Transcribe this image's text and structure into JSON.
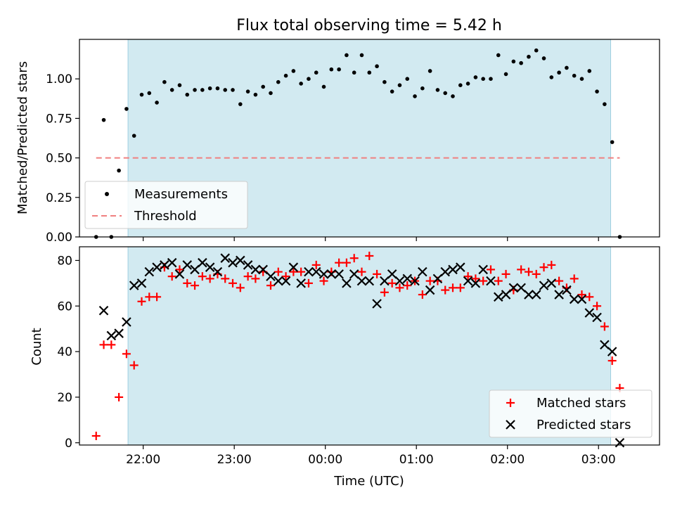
{
  "chart_data": [
    {
      "type": "scatter",
      "title": "Flux total observing time = 5.42 h",
      "xlabel": "",
      "ylabel": "Matched/Predicted stars",
      "ylim": [
        0,
        1.25
      ],
      "yticks": [
        "0.00",
        "0.25",
        "0.50",
        "0.75",
        "1.00"
      ],
      "highlight_span": [
        "21:50",
        "03:08"
      ],
      "legend_position": "lower-left",
      "series": [
        {
          "name": "Measurements",
          "marker": "dot",
          "color": "#000000",
          "x": [
            "21:29",
            "21:34",
            "21:39",
            "21:44",
            "21:49",
            "21:54",
            "21:59",
            "22:04",
            "22:09",
            "22:14",
            "22:19",
            "22:24",
            "22:29",
            "22:34",
            "22:39",
            "22:44",
            "22:49",
            "22:54",
            "22:59",
            "23:04",
            "23:09",
            "23:14",
            "23:19",
            "23:24",
            "23:29",
            "23:34",
            "23:39",
            "23:44",
            "23:49",
            "23:54",
            "23:59",
            "00:04",
            "00:09",
            "00:14",
            "00:19",
            "00:24",
            "00:29",
            "00:34",
            "00:39",
            "00:44",
            "00:49",
            "00:54",
            "00:59",
            "01:04",
            "01:09",
            "01:14",
            "01:19",
            "01:24",
            "01:29",
            "01:34",
            "01:39",
            "01:44",
            "01:49",
            "01:54",
            "01:59",
            "02:04",
            "02:09",
            "02:14",
            "02:19",
            "02:24",
            "02:29",
            "02:34",
            "02:39",
            "02:44",
            "02:49",
            "02:54",
            "02:59",
            "03:04",
            "03:09",
            "03:14"
          ],
          "y": [
            0.0,
            0.74,
            0.0,
            0.42,
            0.81,
            0.64,
            0.9,
            0.91,
            0.85,
            0.98,
            0.93,
            0.96,
            0.9,
            0.93,
            0.93,
            0.94,
            0.94,
            0.93,
            0.93,
            0.84,
            0.92,
            0.9,
            0.95,
            0.91,
            0.98,
            1.02,
            1.05,
            0.97,
            1.0,
            1.04,
            0.95,
            1.06,
            1.06,
            1.15,
            1.04,
            1.15,
            1.04,
            1.08,
            0.98,
            0.92,
            0.96,
            1.0,
            0.89,
            0.94,
            1.05,
            0.93,
            0.91,
            0.89,
            0.96,
            0.97,
            1.01,
            1.0,
            1.0,
            1.15,
            1.03,
            1.11,
            1.1,
            1.14,
            1.18,
            1.13,
            1.01,
            1.04,
            1.07,
            1.02,
            1.0,
            1.05,
            0.92,
            0.84,
            0.6,
            0.0
          ]
        },
        {
          "name": "Threshold",
          "line": "dashed",
          "color": "#f08080",
          "x": [
            "21:29",
            "03:14"
          ],
          "y": [
            0.5,
            0.5
          ]
        }
      ]
    },
    {
      "type": "scatter",
      "title": "",
      "xlabel": "Time (UTC)",
      "ylabel": "Count",
      "ylim": [
        -1,
        86
      ],
      "yticks": [
        "0",
        "20",
        "40",
        "60",
        "80"
      ],
      "xticks": [
        "22:00",
        "23:00",
        "00:00",
        "01:00",
        "02:00",
        "03:00"
      ],
      "highlight_span": [
        "21:50",
        "03:08"
      ],
      "legend_position": "lower-right",
      "series": [
        {
          "name": "Matched stars",
          "marker": "plus",
          "color": "#ff0000",
          "x": [
            "21:29",
            "21:34",
            "21:39",
            "21:44",
            "21:49",
            "21:54",
            "21:59",
            "22:04",
            "22:09",
            "22:14",
            "22:19",
            "22:24",
            "22:29",
            "22:34",
            "22:39",
            "22:44",
            "22:49",
            "22:54",
            "22:59",
            "23:04",
            "23:09",
            "23:14",
            "23:19",
            "23:24",
            "23:29",
            "23:34",
            "23:39",
            "23:44",
            "23:49",
            "23:54",
            "23:59",
            "00:04",
            "00:09",
            "00:14",
            "00:19",
            "00:24",
            "00:29",
            "00:34",
            "00:39",
            "00:44",
            "00:49",
            "00:54",
            "00:59",
            "01:04",
            "01:09",
            "01:14",
            "01:19",
            "01:24",
            "01:29",
            "01:34",
            "01:39",
            "01:44",
            "01:49",
            "01:54",
            "01:59",
            "02:04",
            "02:09",
            "02:14",
            "02:19",
            "02:24",
            "02:29",
            "02:34",
            "02:39",
            "02:44",
            "02:49",
            "02:54",
            "02:59",
            "03:04",
            "03:09",
            "03:14"
          ],
          "y": [
            3,
            43,
            43,
            20,
            39,
            34,
            62,
            64,
            64,
            77,
            73,
            76,
            70,
            69,
            73,
            72,
            74,
            72,
            70,
            68,
            73,
            72,
            75,
            69,
            75,
            73,
            75,
            75,
            70,
            78,
            71,
            75,
            79,
            79,
            81,
            75,
            82,
            74,
            66,
            70,
            68,
            69,
            71,
            65,
            71,
            71,
            67,
            68,
            68,
            73,
            72,
            71,
            76,
            71,
            74,
            67,
            76,
            75,
            74,
            77,
            78,
            71,
            68,
            72,
            65,
            64,
            60,
            51,
            36,
            24
          ]
        },
        {
          "name": "Predicted stars",
          "marker": "x",
          "color": "#000000",
          "x": [
            "21:34",
            "21:39",
            "21:44",
            "21:49",
            "21:54",
            "21:59",
            "22:04",
            "22:09",
            "22:14",
            "22:19",
            "22:24",
            "22:29",
            "22:34",
            "22:39",
            "22:44",
            "22:49",
            "22:54",
            "22:59",
            "23:04",
            "23:09",
            "23:14",
            "23:19",
            "23:24",
            "23:29",
            "23:34",
            "23:39",
            "23:44",
            "23:49",
            "23:54",
            "23:59",
            "00:04",
            "00:09",
            "00:14",
            "00:19",
            "00:24",
            "00:29",
            "00:34",
            "00:39",
            "00:44",
            "00:49",
            "00:54",
            "00:59",
            "01:04",
            "01:09",
            "01:14",
            "01:19",
            "01:24",
            "01:29",
            "01:34",
            "01:39",
            "01:44",
            "01:49",
            "01:54",
            "01:59",
            "02:04",
            "02:09",
            "02:14",
            "02:19",
            "02:24",
            "02:29",
            "02:34",
            "02:39",
            "02:44",
            "02:49",
            "02:54",
            "02:59",
            "03:04",
            "03:09",
            "03:14"
          ],
          "y": [
            58,
            47,
            48,
            53,
            69,
            70,
            75,
            77,
            78,
            79,
            74,
            78,
            76,
            79,
            77,
            75,
            81,
            79,
            80,
            78,
            76,
            76,
            73,
            71,
            71,
            77,
            70,
            75,
            75,
            74,
            74,
            74,
            70,
            74,
            71,
            71,
            61,
            71,
            74,
            71,
            72,
            71,
            75,
            67,
            72,
            75,
            76,
            77,
            71,
            70,
            76,
            71,
            64,
            65,
            68,
            68,
            65,
            65,
            69,
            70,
            65,
            67,
            63,
            63,
            57,
            55,
            43,
            40,
            0
          ]
        }
      ]
    }
  ]
}
